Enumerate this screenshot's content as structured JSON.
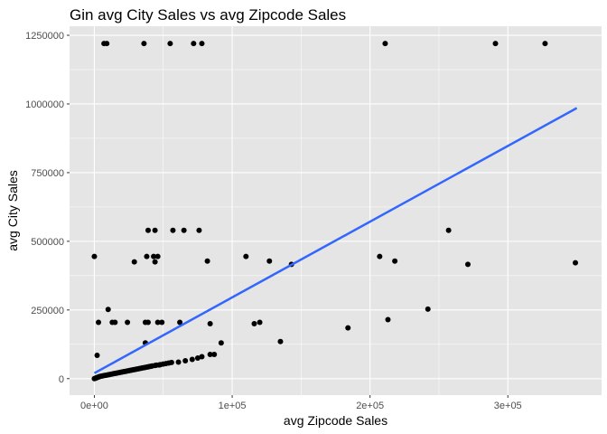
{
  "chart_data": {
    "type": "scatter",
    "title": "Gin avg City Sales vs avg Zipcode Sales",
    "xlabel": "avg Zipcode Sales",
    "ylabel": "avg City Sales",
    "xlim": [
      -18000,
      368000
    ],
    "ylim": [
      -60000,
      1283000
    ],
    "x_ticks": [
      {
        "value": 0,
        "label": "0e+00"
      },
      {
        "value": 100000,
        "label": "1e+05"
      },
      {
        "value": 200000,
        "label": "2e+05"
      },
      {
        "value": 300000,
        "label": "3e+05"
      }
    ],
    "y_ticks": [
      {
        "value": 0,
        "label": "0"
      },
      {
        "value": 250000,
        "label": "250000"
      },
      {
        "value": 500000,
        "label": "500000"
      },
      {
        "value": 750000,
        "label": "750000"
      },
      {
        "value": 1000000,
        "label": "1000000"
      },
      {
        "value": 1250000,
        "label": "1250000"
      }
    ],
    "grid": true,
    "background": "#e5e5e5",
    "grid_color": "#ffffff",
    "point_color": "#000000",
    "fit_line": {
      "color": "#3366ff",
      "x": [
        0,
        350000
      ],
      "y": [
        20000,
        985000
      ]
    },
    "points": [
      [
        7000,
        1220000
      ],
      [
        9000,
        1220000
      ],
      [
        36000,
        1220000
      ],
      [
        55000,
        1220000
      ],
      [
        72000,
        1220000
      ],
      [
        78000,
        1220000
      ],
      [
        211000,
        1220000
      ],
      [
        291000,
        1220000
      ],
      [
        327000,
        1220000
      ],
      [
        0,
        445000
      ],
      [
        39000,
        540000
      ],
      [
        44000,
        540000
      ],
      [
        57000,
        540000
      ],
      [
        65000,
        540000
      ],
      [
        76000,
        540000
      ],
      [
        257000,
        540000
      ],
      [
        10000,
        252000
      ],
      [
        29000,
        425000
      ],
      [
        38000,
        445000
      ],
      [
        43000,
        445000
      ],
      [
        46000,
        445000
      ],
      [
        44000,
        425000
      ],
      [
        110000,
        445000
      ],
      [
        82000,
        428000
      ],
      [
        127000,
        428000
      ],
      [
        143000,
        416000
      ],
      [
        207000,
        445000
      ],
      [
        218000,
        428000
      ],
      [
        271000,
        416000
      ],
      [
        349000,
        422000
      ],
      [
        3000,
        205000
      ],
      [
        13000,
        205000
      ],
      [
        15000,
        205000
      ],
      [
        24000,
        205000
      ],
      [
        37000,
        205000
      ],
      [
        39000,
        205000
      ],
      [
        46000,
        205000
      ],
      [
        49000,
        205000
      ],
      [
        62000,
        205000
      ],
      [
        84000,
        200000
      ],
      [
        116000,
        200000
      ],
      [
        120000,
        205000
      ],
      [
        213000,
        215000
      ],
      [
        242000,
        253000
      ],
      [
        37000,
        130000
      ],
      [
        92000,
        130000
      ],
      [
        135000,
        135000
      ],
      [
        184000,
        185000
      ],
      [
        2000,
        85000
      ],
      [
        84000,
        88000
      ],
      [
        87000,
        88000
      ],
      [
        71000,
        70000
      ],
      [
        75000,
        75000
      ],
      [
        78000,
        80000
      ],
      [
        66000,
        65000
      ],
      [
        61000,
        60000
      ],
      [
        0,
        0
      ],
      [
        500,
        1000
      ],
      [
        1000,
        2000
      ],
      [
        1500,
        3000
      ],
      [
        2000,
        4000
      ],
      [
        2500,
        5000
      ],
      [
        3000,
        6000
      ],
      [
        3500,
        7000
      ],
      [
        4000,
        8000
      ],
      [
        5000,
        9000
      ],
      [
        6000,
        10000
      ],
      [
        7000,
        11000
      ],
      [
        8000,
        12000
      ],
      [
        9000,
        13000
      ],
      [
        10000,
        14000
      ],
      [
        11000,
        15000
      ],
      [
        12000,
        16000
      ],
      [
        13000,
        17000
      ],
      [
        14000,
        18000
      ],
      [
        15000,
        19000
      ],
      [
        16000,
        20000
      ],
      [
        17000,
        21000
      ],
      [
        18000,
        22000
      ],
      [
        19000,
        23000
      ],
      [
        20000,
        24000
      ],
      [
        21000,
        25000
      ],
      [
        22000,
        26000
      ],
      [
        23000,
        27000
      ],
      [
        24000,
        28000
      ],
      [
        25000,
        29000
      ],
      [
        26000,
        30000
      ],
      [
        27000,
        31000
      ],
      [
        28000,
        32000
      ],
      [
        29000,
        33000
      ],
      [
        30000,
        34000
      ],
      [
        31000,
        35000
      ],
      [
        32000,
        36000
      ],
      [
        33000,
        37000
      ],
      [
        34000,
        38000
      ],
      [
        35000,
        39000
      ],
      [
        36000,
        40000
      ],
      [
        37000,
        41000
      ],
      [
        38000,
        42000
      ],
      [
        39000,
        43000
      ],
      [
        40000,
        44000
      ],
      [
        41000,
        45000
      ],
      [
        42000,
        46000
      ],
      [
        44000,
        48000
      ],
      [
        45000,
        49000
      ],
      [
        47000,
        50000
      ],
      [
        48000,
        51000
      ],
      [
        50000,
        53000
      ],
      [
        52000,
        55000
      ],
      [
        54000,
        57000
      ],
      [
        56000,
        59000
      ]
    ]
  }
}
